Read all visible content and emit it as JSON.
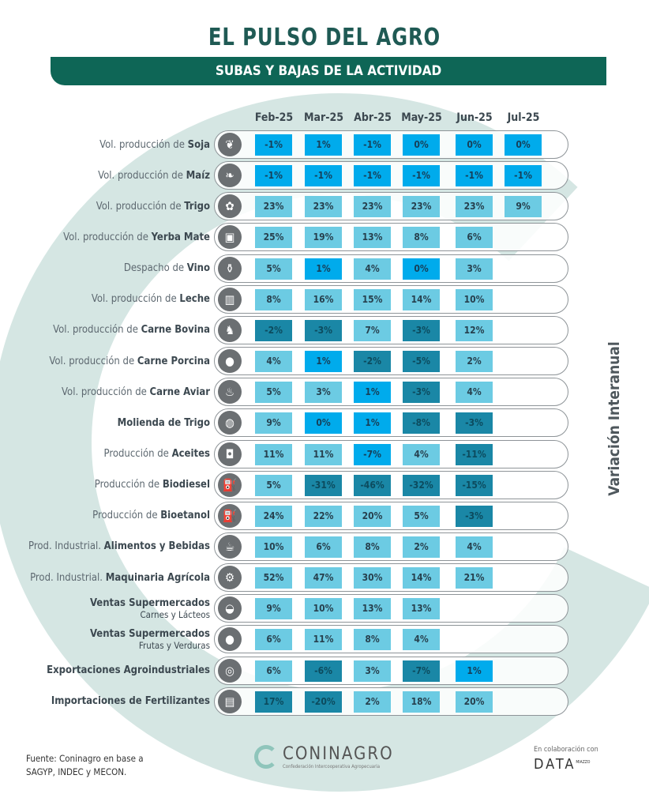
{
  "title": "EL PULSO DEL AGRO",
  "subtitle": "SUBAS Y BAJAS DE LA ACTIVIDAD",
  "side_label": "Variación Interanual",
  "colors": {
    "title": "#1f5a54",
    "band": "#0e6656",
    "light": "#6ccbe3",
    "bright": "#00abec",
    "dark": "#1a87a6",
    "background_c": "#d5e6e3"
  },
  "months": [
    "Feb-25",
    "Mar-25",
    "Abr-25",
    "May-25",
    "Jun-25",
    "Jul-25"
  ],
  "rows": [
    {
      "pre": "Vol. producción de ",
      "bold": "Soja",
      "icon": "soy-icon",
      "cells": [
        [
          "-1%",
          "b"
        ],
        [
          "1%",
          "b"
        ],
        [
          "-1%",
          "b"
        ],
        [
          "0%",
          "b"
        ],
        [
          "0%",
          "b"
        ],
        [
          "0%",
          "b"
        ]
      ]
    },
    {
      "pre": "Vol. producción de ",
      "bold": "Maíz",
      "icon": "corn-icon",
      "cells": [
        [
          "-1%",
          "b"
        ],
        [
          "-1%",
          "b"
        ],
        [
          "-1%",
          "b"
        ],
        [
          "-1%",
          "b"
        ],
        [
          "-1%",
          "b"
        ],
        [
          "-1%",
          "b"
        ]
      ]
    },
    {
      "pre": "Vol. producción de ",
      "bold": "Trigo",
      "icon": "wheat-icon",
      "cells": [
        [
          "23%",
          "l"
        ],
        [
          "23%",
          "l"
        ],
        [
          "23%",
          "l"
        ],
        [
          "23%",
          "l"
        ],
        [
          "23%",
          "l"
        ],
        [
          "9%",
          "l"
        ]
      ]
    },
    {
      "pre": "Vol. producción de ",
      "bold": "Yerba Mate",
      "icon": "yerba-package-icon",
      "cells": [
        [
          "25%",
          "l"
        ],
        [
          "19%",
          "l"
        ],
        [
          "13%",
          "l"
        ],
        [
          "8%",
          "l"
        ],
        [
          "6%",
          "l"
        ]
      ]
    },
    {
      "pre": "Despacho de ",
      "bold": "Vino",
      "icon": "wine-bottle-icon",
      "cells": [
        [
          "5%",
          "l"
        ],
        [
          "1%",
          "b"
        ],
        [
          "4%",
          "l"
        ],
        [
          "0%",
          "b"
        ],
        [
          "3%",
          "l"
        ]
      ]
    },
    {
      "pre": "Vol. producción de ",
      "bold": "Leche",
      "icon": "milk-icon",
      "cells": [
        [
          "8%",
          "l"
        ],
        [
          "16%",
          "l"
        ],
        [
          "15%",
          "l"
        ],
        [
          "14%",
          "l"
        ],
        [
          "10%",
          "l"
        ]
      ]
    },
    {
      "pre": "Vol. producción de ",
      "bold": "Carne Bovina",
      "icon": "cow-icon",
      "cells": [
        [
          "-2%",
          "d"
        ],
        [
          "-3%",
          "d"
        ],
        [
          "7%",
          "l"
        ],
        [
          "-3%",
          "d"
        ],
        [
          "12%",
          "l"
        ]
      ]
    },
    {
      "pre": "Vol. producción de ",
      "bold": "Carne Porcina",
      "icon": "pig-icon",
      "cells": [
        [
          "4%",
          "l"
        ],
        [
          "1%",
          "b"
        ],
        [
          "-2%",
          "d"
        ],
        [
          "-5%",
          "d"
        ],
        [
          "2%",
          "l"
        ]
      ]
    },
    {
      "pre": "Vol. producción de ",
      "bold": "Carne Aviar",
      "icon": "chicken-icon",
      "cells": [
        [
          "5%",
          "l"
        ],
        [
          "3%",
          "l"
        ],
        [
          "1%",
          "b"
        ],
        [
          "-3%",
          "d"
        ],
        [
          "4%",
          "l"
        ]
      ]
    },
    {
      "pre": "",
      "bold": "Molienda de Trigo",
      "icon": "flour-sack-icon",
      "cells": [
        [
          "9%",
          "l"
        ],
        [
          "0%",
          "b"
        ],
        [
          "1%",
          "b"
        ],
        [
          "-8%",
          "d"
        ],
        [
          "-3%",
          "d"
        ]
      ]
    },
    {
      "pre": "Producción de ",
      "bold": "Aceites",
      "icon": "oil-can-icon",
      "cells": [
        [
          "11%",
          "l"
        ],
        [
          "11%",
          "l"
        ],
        [
          "-7%",
          "b"
        ],
        [
          "4%",
          "l"
        ],
        [
          "-11%",
          "d"
        ]
      ]
    },
    {
      "pre": "Producción de ",
      "bold": "Biodiesel",
      "icon": "biodiesel-icon",
      "cells": [
        [
          "5%",
          "l"
        ],
        [
          "-31%",
          "d"
        ],
        [
          "-46%",
          "d"
        ],
        [
          "-32%",
          "d"
        ],
        [
          "-15%",
          "d"
        ]
      ]
    },
    {
      "pre": "Producción de ",
      "bold": "Bioetanol",
      "icon": "fuel-pump-icon",
      "cells": [
        [
          "24%",
          "l"
        ],
        [
          "22%",
          "l"
        ],
        [
          "20%",
          "l"
        ],
        [
          "5%",
          "l"
        ],
        [
          "-3%",
          "d"
        ]
      ]
    },
    {
      "pre": "Prod. Industrial. ",
      "bold": "Alimentos y Bebidas",
      "icon": "food-drink-icon",
      "cells": [
        [
          "10%",
          "l"
        ],
        [
          "6%",
          "l"
        ],
        [
          "8%",
          "l"
        ],
        [
          "2%",
          "l"
        ],
        [
          "4%",
          "l"
        ]
      ]
    },
    {
      "pre": "Prod. Industrial. ",
      "bold": "Maquinaria Agrícola",
      "icon": "tractor-icon",
      "cells": [
        [
          "52%",
          "l"
        ],
        [
          "47%",
          "l"
        ],
        [
          "30%",
          "l"
        ],
        [
          "14%",
          "l"
        ],
        [
          "21%",
          "l"
        ]
      ]
    },
    {
      "pre": "",
      "bold": "Ventas Supermercados",
      "sub": "Carnes y Lácteos",
      "icon": "steak-icon",
      "cells": [
        [
          "9%",
          "l"
        ],
        [
          "10%",
          "l"
        ],
        [
          "13%",
          "l"
        ],
        [
          "13%",
          "l"
        ]
      ]
    },
    {
      "pre": "",
      "bold": "Ventas Supermercados",
      "sub": "Frutas y Verduras",
      "icon": "apple-icon",
      "cells": [
        [
          "6%",
          "l"
        ],
        [
          "11%",
          "l"
        ],
        [
          "8%",
          "l"
        ],
        [
          "4%",
          "l"
        ]
      ]
    },
    {
      "pre": "",
      "bold": "Exportaciones Agroindustriales",
      "icon": "globe-icon",
      "cells": [
        [
          "6%",
          "l"
        ],
        [
          "-6%",
          "d"
        ],
        [
          "3%",
          "l"
        ],
        [
          "-7%",
          "d"
        ],
        [
          "1%",
          "b"
        ]
      ]
    },
    {
      "pre": "",
      "bold": "Importaciones de Fertilizantes",
      "icon": "fertilizer-bag-icon",
      "cells": [
        [
          "17%",
          "d"
        ],
        [
          "-20%",
          "d"
        ],
        [
          "2%",
          "l"
        ],
        [
          "18%",
          "l"
        ],
        [
          "20%",
          "l"
        ]
      ]
    }
  ],
  "footer": {
    "source_line1": "Fuente: Coninagro en base a",
    "source_line2": "SAGYP, INDEC y MECON.",
    "logo_name": "CONINAGRO",
    "logo_tagline": "Confederación Intercooperativa Agropecuaria",
    "collab": "En colaboración con",
    "collab_logo": "DATA",
    "collab_logo_sup": "MIAZZO"
  }
}
